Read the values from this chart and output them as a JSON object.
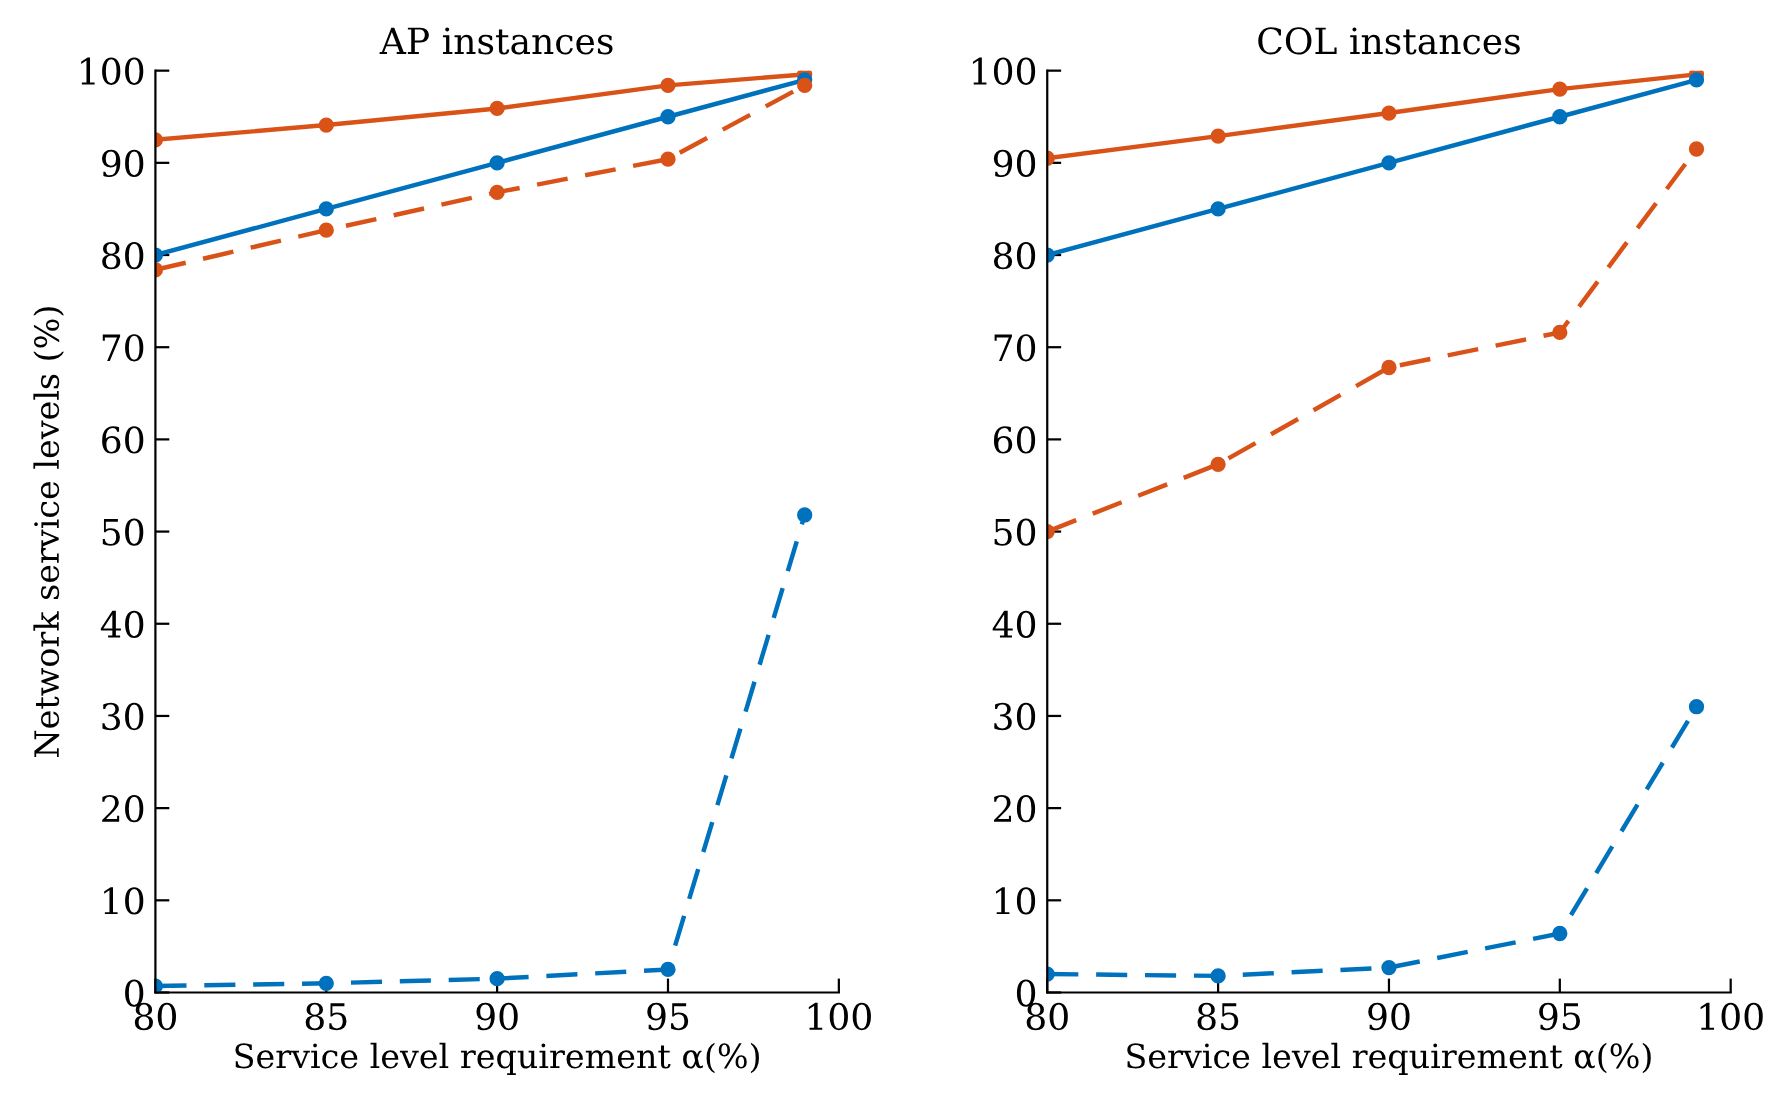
{
  "chart_data": [
    {
      "type": "line",
      "title": "AP instances",
      "xlabel": "Service level requirement α(%)",
      "ylabel": "Network service levels (%)",
      "x": [
        80,
        85,
        90,
        95,
        99
      ],
      "xlim": [
        80,
        100
      ],
      "xticks": [
        80,
        85,
        90,
        95,
        100
      ],
      "ylim": [
        0,
        100
      ],
      "yticks": [
        0,
        10,
        20,
        30,
        40,
        50,
        60,
        70,
        80,
        90,
        100
      ],
      "marker": "circle",
      "grid": false,
      "legend": false,
      "series": [
        {
          "color": "#d95319",
          "line_style": "solid",
          "values": [
            92.5,
            94.1,
            95.9,
            98.4,
            99.6
          ]
        },
        {
          "color": "#0072bd",
          "line_style": "solid",
          "values": [
            80,
            85,
            90,
            95,
            99
          ]
        },
        {
          "color": "#d95319",
          "line_style": "dashed",
          "values": [
            78.4,
            82.7,
            86.8,
            90.4,
            98.4
          ]
        },
        {
          "color": "#0072bd",
          "line_style": "dashed",
          "values": [
            0.7,
            1.0,
            1.5,
            2.5,
            51.8
          ]
        }
      ]
    },
    {
      "type": "line",
      "title": "COL instances",
      "xlabel": "Service level requirement α(%)",
      "x": [
        80,
        85,
        90,
        95,
        99
      ],
      "xlim": [
        80,
        100
      ],
      "xticks": [
        80,
        85,
        90,
        95,
        100
      ],
      "ylim": [
        0,
        100
      ],
      "yticks": [
        0,
        10,
        20,
        30,
        40,
        50,
        60,
        70,
        80,
        90,
        100
      ],
      "marker": "circle",
      "grid": false,
      "legend": false,
      "series": [
        {
          "color": "#d95319",
          "line_style": "solid",
          "values": [
            90.5,
            92.9,
            95.4,
            98.0,
            99.6
          ]
        },
        {
          "color": "#0072bd",
          "line_style": "solid",
          "values": [
            80,
            85,
            90,
            95,
            99
          ]
        },
        {
          "color": "#d95319",
          "line_style": "dashed",
          "values": [
            50.0,
            57.3,
            67.8,
            71.6,
            91.5
          ]
        },
        {
          "color": "#0072bd",
          "line_style": "dashed",
          "values": [
            2.0,
            1.8,
            2.7,
            6.4,
            31.0
          ]
        }
      ]
    }
  ]
}
